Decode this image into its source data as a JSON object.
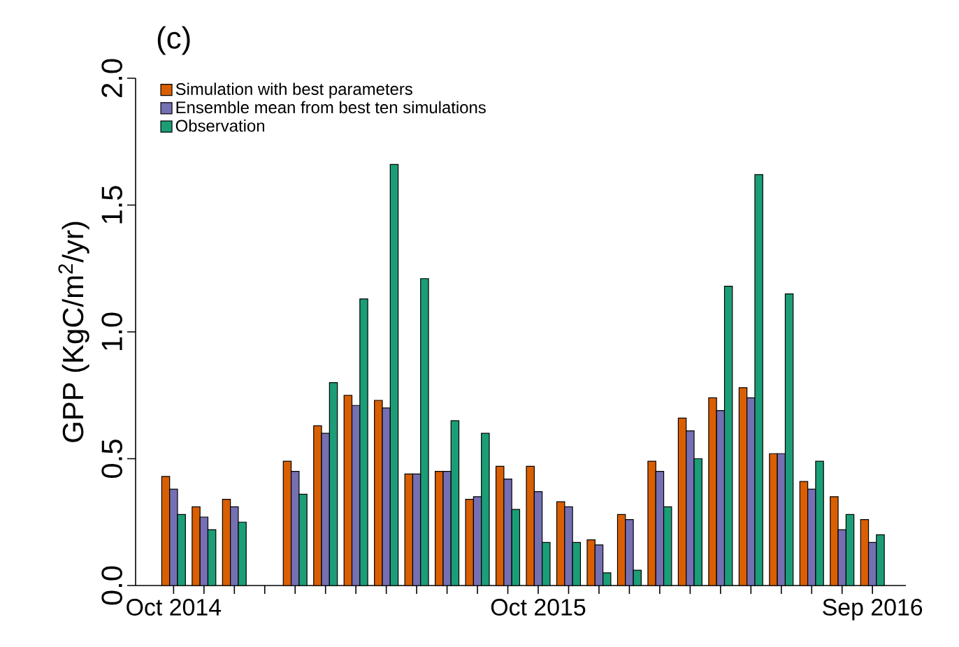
{
  "chart_data": {
    "type": "bar",
    "title": "(c)",
    "ylabel": "GPP (KgC/m$^{2}$/yr)",
    "categories": [
      "Oct 2014",
      null,
      null,
      null,
      null,
      null,
      null,
      null,
      null,
      null,
      null,
      null,
      "Oct 2015",
      null,
      null,
      null,
      null,
      null,
      null,
      null,
      null,
      null,
      null,
      "Sep 2016"
    ],
    "series": [
      {
        "name": "Simulation with best parameters",
        "color": "#d95f02",
        "values": [
          0.43,
          0.31,
          0.34,
          null,
          0.49,
          0.63,
          0.75,
          0.73,
          0.44,
          0.45,
          0.34,
          0.47,
          0.47,
          0.33,
          0.18,
          0.28,
          0.49,
          0.66,
          0.74,
          0.78,
          0.52,
          0.41,
          0.35,
          0.26
        ]
      },
      {
        "name": "Ensemble mean from best ten simulations",
        "color": "#7570b3",
        "values": [
          0.38,
          0.27,
          0.31,
          null,
          0.45,
          0.6,
          0.71,
          0.7,
          0.44,
          0.45,
          0.35,
          0.42,
          0.37,
          0.31,
          0.16,
          0.26,
          0.45,
          0.61,
          0.69,
          0.74,
          0.52,
          0.38,
          0.22,
          0.17
        ]
      },
      {
        "name": "Observation",
        "color": "#1b9e77",
        "values": [
          0.28,
          0.22,
          0.25,
          null,
          0.36,
          0.8,
          1.13,
          1.66,
          1.21,
          0.65,
          0.6,
          0.3,
          0.17,
          0.17,
          0.05,
          0.06,
          0.31,
          0.5,
          1.18,
          1.62,
          1.15,
          0.49,
          0.28,
          0.2
        ]
      }
    ],
    "ylim": [
      0,
      2
    ],
    "yticks": [
      {
        "value": 0,
        "label": "0.0"
      },
      {
        "value": 0.5,
        "label": "0.5"
      },
      {
        "value": 1,
        "label": "1.0"
      },
      {
        "value": 1.5,
        "label": "1.5"
      },
      {
        "value": 2,
        "label": "2.0"
      }
    ],
    "legend": "top left"
  }
}
